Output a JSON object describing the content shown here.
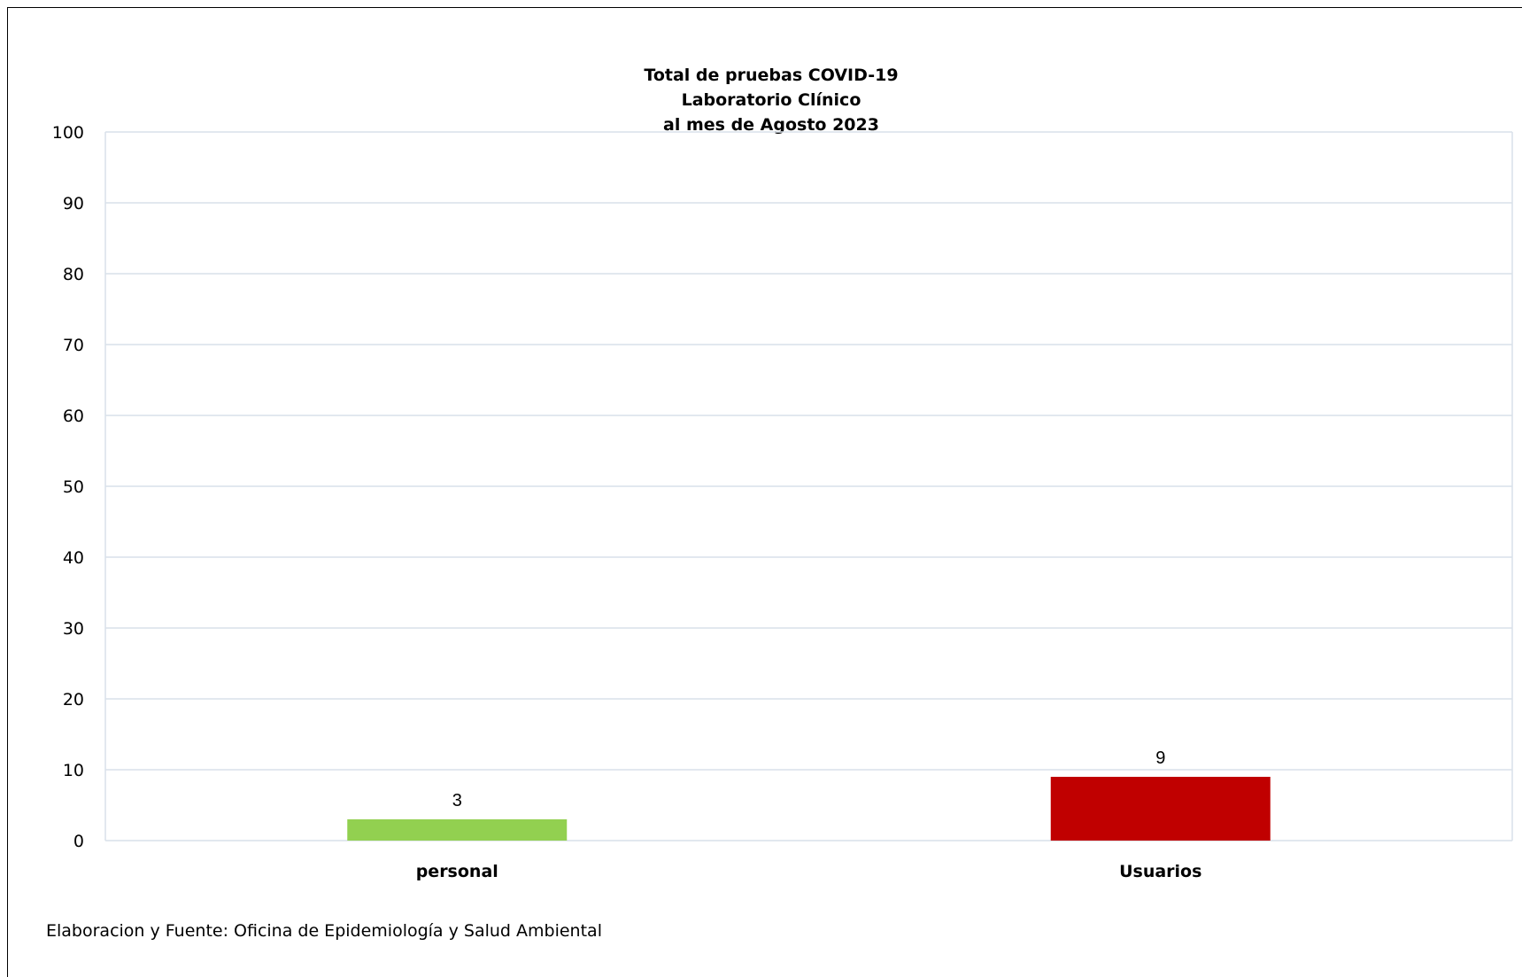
{
  "chart_data": {
    "type": "bar",
    "title_lines": [
      "Total de pruebas COVID-19",
      "Laboratorio Clínico",
      "al mes de Agosto 2023"
    ],
    "categories": [
      "personal",
      "Usuarios"
    ],
    "values": [
      3,
      9
    ],
    "data_labels": [
      "3",
      "9"
    ],
    "bar_colors": [
      "#92d050",
      "#c00000"
    ],
    "xlabel": "",
    "ylabel": "",
    "ylim": [
      0,
      100
    ],
    "yticks": [
      0,
      10,
      20,
      30,
      40,
      50,
      60,
      70,
      80,
      90,
      100
    ],
    "ytick_labels": [
      "0",
      "10",
      "20",
      "30",
      "40",
      "50",
      "60",
      "70",
      "80",
      "90",
      "100"
    ],
    "grid": true,
    "legend": "none",
    "grid_color": "#d9e1ea"
  },
  "footer": {
    "source_text": "Elaboracion y Fuente: Oficina de Epidemiología y Salud Ambiental"
  }
}
